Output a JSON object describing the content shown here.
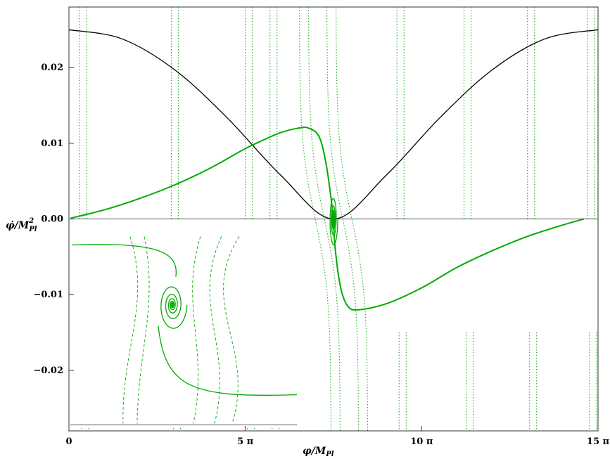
{
  "chart_data": {
    "type": "line",
    "xlabel": "φ/M",
    "xlabel_sub": "Pl",
    "ylabel": "φ̇/M",
    "ylabel_sup": "2",
    "ylabel_sub": "Pl",
    "xlim": [
      0,
      15
    ],
    "ylim": [
      -0.028,
      0.028
    ],
    "x_ticks": [
      {
        "value": 0,
        "label": "0"
      },
      {
        "value": 5,
        "label": "5 π"
      },
      {
        "value": 10,
        "label": "10 π"
      },
      {
        "value": 15,
        "label": "15 π"
      }
    ],
    "y_ticks": [
      {
        "value": 0.02,
        "label": "0.02"
      },
      {
        "value": 0.01,
        "label": "0.01"
      },
      {
        "value": 0.0,
        "label": "0.00"
      },
      {
        "value": -0.01,
        "label": "−0.01"
      },
      {
        "value": -0.02,
        "label": "−0.02"
      }
    ],
    "x_unit": "π",
    "colors": {
      "potential": "#000000",
      "trajectory": "#00aa00",
      "axis": "#555555"
    },
    "series": [
      {
        "kind": "potential-curve",
        "x": [
          0,
          1.5,
          3,
          4.5,
          6,
          7.5,
          9,
          10.5,
          12,
          13.5,
          15
        ],
        "y": [
          0.025,
          0.0238,
          0.0197,
          0.0133,
          0.0058,
          0.0,
          0.0058,
          0.0133,
          0.0197,
          0.0238,
          0.025
        ]
      },
      {
        "kind": "trajectory-upper",
        "x": [
          0.05,
          1,
          2,
          3,
          4,
          5,
          5.5,
          6,
          6.5,
          6.8,
          7.1,
          7.3,
          7.45,
          7.5
        ],
        "y": [
          0.0001,
          0.0012,
          0.0027,
          0.0045,
          0.0067,
          0.0093,
          0.0104,
          0.0114,
          0.012,
          0.012,
          0.0108,
          0.007,
          0.002,
          0.0
        ]
      },
      {
        "kind": "trajectory-lower",
        "x": [
          7.5,
          7.55,
          7.7,
          7.9,
          8.2,
          9,
          10,
          11,
          12,
          13,
          14,
          14.6
        ],
        "y": [
          0.0,
          -0.004,
          -0.009,
          -0.0115,
          -0.012,
          -0.0112,
          -0.0091,
          -0.0064,
          -0.0042,
          -0.0023,
          -0.0008,
          0.0
        ]
      }
    ],
    "spiral_center": {
      "x": 7.5,
      "y": 0.0
    },
    "dotted_trajectory_x": [
      0.3,
      0.5,
      2.9,
      3.1,
      5.0,
      5.2,
      5.7,
      5.9,
      9.3,
      9.5,
      11.2,
      11.4,
      13.0,
      13.2,
      14.7,
      14.9
    ],
    "inset": {
      "description_spiral_center_fraction": [
        0.45,
        0.36
      ]
    }
  }
}
